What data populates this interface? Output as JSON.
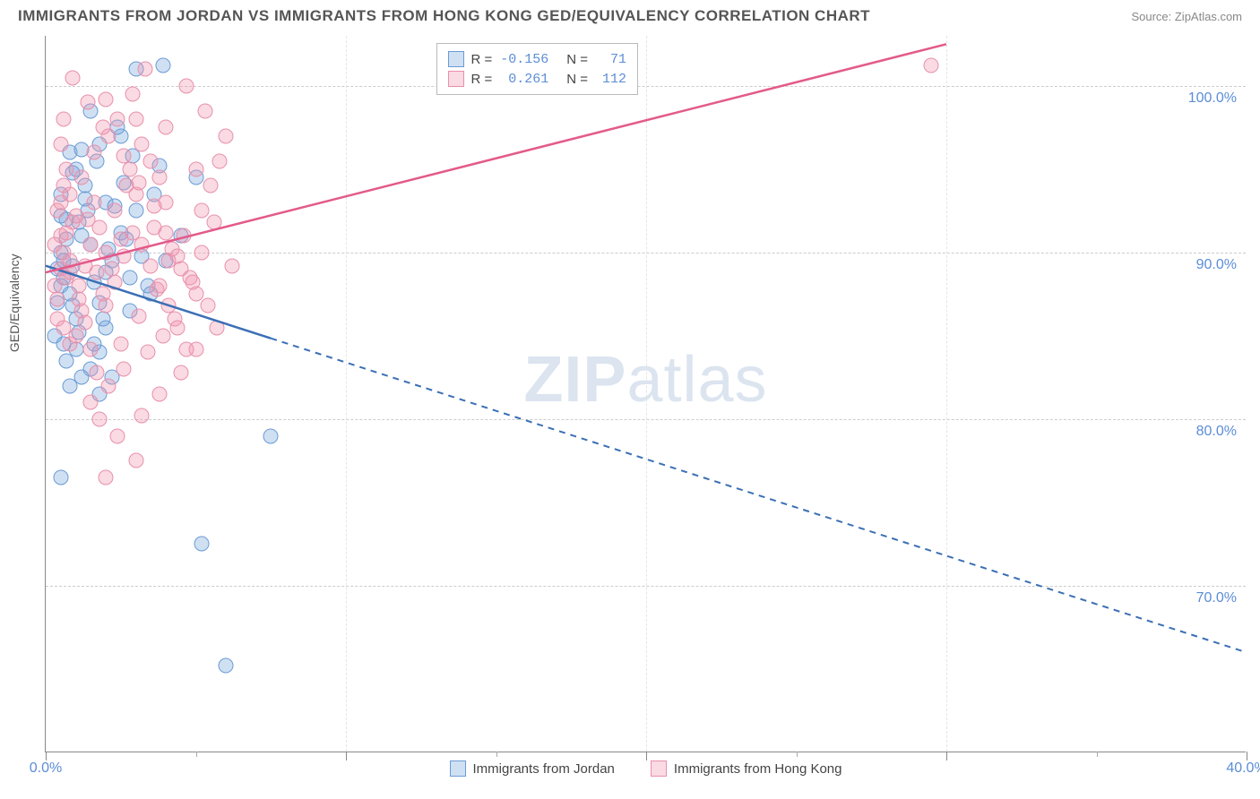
{
  "title": "IMMIGRANTS FROM JORDAN VS IMMIGRANTS FROM HONG KONG GED/EQUIVALENCY CORRELATION CHART",
  "source": "Source: ZipAtlas.com",
  "y_label": "GED/Equivalency",
  "watermark_bold": "ZIP",
  "watermark_light": "atlas",
  "chart": {
    "type": "scatter",
    "xlim": [
      0,
      40
    ],
    "ylim": [
      60,
      103
    ],
    "x_ticks_major": [
      0,
      10,
      20,
      30,
      40
    ],
    "x_ticks_minor": [
      5,
      15,
      25,
      35
    ],
    "y_ticks": [
      70,
      80,
      90,
      100
    ],
    "x_tick_labels": {
      "0": "0.0%",
      "40": "40.0%"
    },
    "y_tick_labels": {
      "70": "70.0%",
      "80": "80.0%",
      "90": "90.0%",
      "100": "100.0%"
    },
    "background_color": "#ffffff",
    "grid_color": "#cccccc",
    "axis_color": "#888888",
    "tick_label_color": "#5b8dd6",
    "marker_size": 17,
    "series": [
      {
        "name": "Immigrants from Jordan",
        "color_fill": "rgba(120,165,220,0.35)",
        "color_stroke": "#6a9bd4",
        "line_color": "#3b6fb5",
        "r_label": "R =",
        "r_value": "-0.156",
        "n_label": "N =",
        "n_value": "71",
        "trend": {
          "x1": 0,
          "y1": 89.2,
          "x2": 40,
          "y2": 66,
          "solid_until_x": 7.5
        },
        "points": [
          [
            0.4,
            89
          ],
          [
            0.6,
            88.5
          ],
          [
            0.5,
            88
          ],
          [
            0.8,
            87.5
          ],
          [
            0.5,
            90
          ],
          [
            0.9,
            89.2
          ],
          [
            0.3,
            85
          ],
          [
            1.0,
            86
          ],
          [
            1.2,
            91
          ],
          [
            0.7,
            92
          ],
          [
            1.5,
            90.5
          ],
          [
            1.0,
            95
          ],
          [
            1.8,
            96.5
          ],
          [
            2.5,
            97
          ],
          [
            3.8,
            95.2
          ],
          [
            1.3,
            94
          ],
          [
            2.0,
            93
          ],
          [
            3.0,
            92.5
          ],
          [
            2.2,
            89.5
          ],
          [
            1.8,
            87
          ],
          [
            0.6,
            84.5
          ],
          [
            1.5,
            83
          ],
          [
            0.8,
            82
          ],
          [
            0.5,
            76.5
          ],
          [
            2.0,
            85.5
          ],
          [
            2.8,
            86.5
          ],
          [
            1.2,
            82.5
          ],
          [
            1.8,
            84
          ],
          [
            2.5,
            91.2
          ],
          [
            3.2,
            89.8
          ],
          [
            4.5,
            91
          ],
          [
            5.0,
            94.5
          ],
          [
            3.0,
            101
          ],
          [
            3.9,
            101.2
          ],
          [
            1.1,
            85.2
          ],
          [
            0.9,
            86.8
          ],
          [
            1.6,
            88.2
          ],
          [
            2.1,
            90.2
          ],
          [
            0.7,
            90.8
          ],
          [
            1.4,
            92.5
          ],
          [
            2.6,
            94.2
          ],
          [
            0.5,
            93.5
          ],
          [
            5.2,
            72.5
          ],
          [
            6.0,
            65.2
          ],
          [
            7.5,
            79
          ],
          [
            2.8,
            88.5
          ],
          [
            3.5,
            87.5
          ],
          [
            1.9,
            86
          ],
          [
            0.4,
            87
          ],
          [
            0.6,
            89.5
          ],
          [
            1.1,
            91.8
          ],
          [
            2.3,
            92.8
          ],
          [
            1.7,
            95.5
          ],
          [
            0.8,
            96
          ],
          [
            2.4,
            97.5
          ],
          [
            1.5,
            98.5
          ],
          [
            0.9,
            94.8
          ],
          [
            1.3,
            93.2
          ],
          [
            2.0,
            88.8
          ],
          [
            2.7,
            90.8
          ],
          [
            3.4,
            88
          ],
          [
            4.0,
            89.5
          ],
          [
            1.6,
            84.5
          ],
          [
            2.2,
            82.5
          ],
          [
            0.7,
            83.5
          ],
          [
            1.0,
            84.2
          ],
          [
            1.8,
            81.5
          ],
          [
            0.5,
            92.2
          ],
          [
            1.2,
            96.2
          ],
          [
            2.9,
            95.8
          ],
          [
            3.6,
            93.5
          ]
        ]
      },
      {
        "name": "Immigrants from Hong Kong",
        "color_fill": "rgba(240,150,175,0.35)",
        "color_stroke": "#e890ab",
        "line_color": "#e35a8a",
        "r_label": "R =",
        "r_value": "0.261",
        "n_label": "N =",
        "n_value": "112",
        "trend": {
          "x1": 0,
          "y1": 88.8,
          "x2": 30,
          "y2": 102.5,
          "solid_until_x": 30
        },
        "points": [
          [
            0.3,
            88
          ],
          [
            0.5,
            89
          ],
          [
            0.4,
            87.2
          ],
          [
            0.7,
            88.5
          ],
          [
            0.6,
            90
          ],
          [
            0.8,
            89.5
          ],
          [
            0.5,
            91
          ],
          [
            0.9,
            91.8
          ],
          [
            0.4,
            86
          ],
          [
            0.6,
            85.5
          ],
          [
            0.8,
            84.5
          ],
          [
            1.0,
            85
          ],
          [
            1.2,
            86.5
          ],
          [
            1.1,
            88
          ],
          [
            1.3,
            89.2
          ],
          [
            1.5,
            90.5
          ],
          [
            1.4,
            92
          ],
          [
            1.6,
            93
          ],
          [
            1.8,
            91.5
          ],
          [
            2.0,
            90
          ],
          [
            1.7,
            88.8
          ],
          [
            1.9,
            87.5
          ],
          [
            2.2,
            89
          ],
          [
            2.5,
            90.8
          ],
          [
            2.3,
            92.5
          ],
          [
            2.7,
            94
          ],
          [
            3.0,
            93.5
          ],
          [
            2.8,
            95
          ],
          [
            3.2,
            96.5
          ],
          [
            3.5,
            95.5
          ],
          [
            3.8,
            94.5
          ],
          [
            4.0,
            93
          ],
          [
            3.6,
            91.5
          ],
          [
            4.2,
            90.2
          ],
          [
            4.5,
            89
          ],
          [
            4.8,
            88.5
          ],
          [
            5.0,
            87.5
          ],
          [
            4.3,
            86
          ],
          [
            3.9,
            85
          ],
          [
            3.4,
            84
          ],
          [
            2.6,
            83
          ],
          [
            2.1,
            82
          ],
          [
            1.5,
            81
          ],
          [
            1.8,
            80
          ],
          [
            2.4,
            79
          ],
          [
            3.0,
            77.5
          ],
          [
            2.0,
            76.5
          ],
          [
            2.5,
            84.5
          ],
          [
            3.1,
            86.2
          ],
          [
            3.7,
            87.8
          ],
          [
            4.1,
            89.5
          ],
          [
            4.6,
            91
          ],
          [
            5.2,
            92.5
          ],
          [
            5.5,
            94
          ],
          [
            5.8,
            95.5
          ],
          [
            6.0,
            97
          ],
          [
            5.3,
            98.5
          ],
          [
            4.7,
            100
          ],
          [
            3.3,
            101
          ],
          [
            2.9,
            99.5
          ],
          [
            2.4,
            98
          ],
          [
            1.9,
            97.5
          ],
          [
            1.4,
            99
          ],
          [
            0.9,
            100.5
          ],
          [
            0.6,
            98
          ],
          [
            0.5,
            96.5
          ],
          [
            0.7,
            95
          ],
          [
            0.8,
            93.5
          ],
          [
            1.0,
            92.2
          ],
          [
            1.2,
            94.5
          ],
          [
            1.6,
            96
          ],
          [
            2.1,
            97
          ],
          [
            2.6,
            95.8
          ],
          [
            3.1,
            94.2
          ],
          [
            3.6,
            92.8
          ],
          [
            4.0,
            91.2
          ],
          [
            4.4,
            89.8
          ],
          [
            4.9,
            88.2
          ],
          [
            5.4,
            86.8
          ],
          [
            5.7,
            85.5
          ],
          [
            5.0,
            84.2
          ],
          [
            4.5,
            82.8
          ],
          [
            3.8,
            81.5
          ],
          [
            3.2,
            80.2
          ],
          [
            5.2,
            90
          ],
          [
            5.6,
            91.8
          ],
          [
            6.2,
            89.2
          ],
          [
            0.4,
            92.5
          ],
          [
            0.6,
            94
          ],
          [
            0.3,
            90.5
          ],
          [
            0.5,
            93
          ],
          [
            0.7,
            91.2
          ],
          [
            0.8,
            88.8
          ],
          [
            1.1,
            87.2
          ],
          [
            1.3,
            85.8
          ],
          [
            1.5,
            84.2
          ],
          [
            1.7,
            82.8
          ],
          [
            2.0,
            86.8
          ],
          [
            2.3,
            88.2
          ],
          [
            2.6,
            89.8
          ],
          [
            2.9,
            91.2
          ],
          [
            3.2,
            90.5
          ],
          [
            3.5,
            89.2
          ],
          [
            3.8,
            88
          ],
          [
            4.1,
            86.8
          ],
          [
            4.4,
            85.5
          ],
          [
            4.7,
            84.2
          ],
          [
            5.0,
            95
          ],
          [
            4.0,
            97.5
          ],
          [
            3.0,
            98
          ],
          [
            2.0,
            99.2
          ],
          [
            29.5,
            101.2
          ]
        ]
      }
    ]
  },
  "bottom_legend": [
    {
      "label": "Immigrants from Jordan",
      "fill": "rgba(120,165,220,0.35)",
      "stroke": "#6a9bd4"
    },
    {
      "label": "Immigrants from Hong Kong",
      "fill": "rgba(240,150,175,0.35)",
      "stroke": "#e890ab"
    }
  ]
}
